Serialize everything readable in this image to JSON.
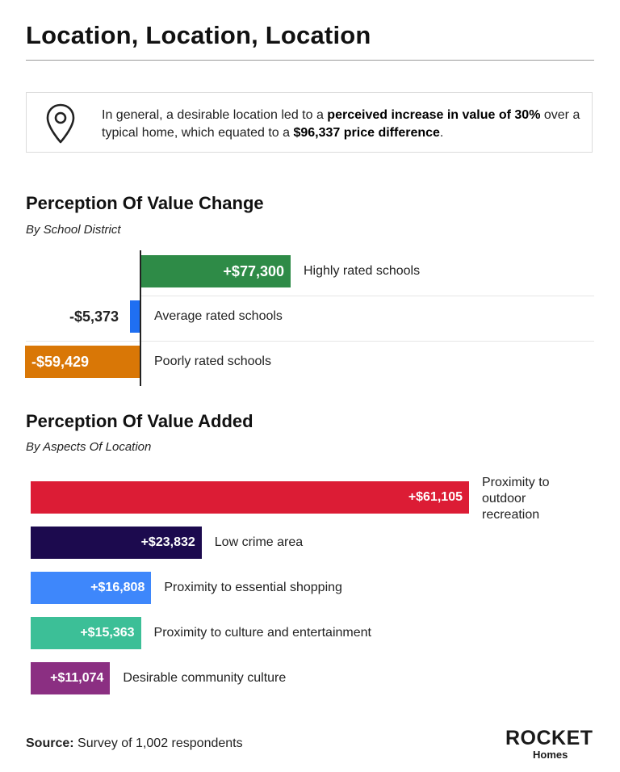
{
  "title": "Location, Location, Location",
  "callout": {
    "icon": "location-pin-icon",
    "text_prefix": "In general, a desirable location led to a ",
    "text_bold_1": "perceived increase in value of 30%",
    "text_mid": " over a typical home, which equated to a ",
    "text_bold_2": "$96,337 price difference",
    "text_suffix": "."
  },
  "section1": {
    "title": "Perception Of Value Change",
    "subtitle": "By School District"
  },
  "section2": {
    "title": "Perception Of Value Added",
    "subtitle": "By Aspects Of Location"
  },
  "source": {
    "label": "Source:",
    "text": " Survey of 1,002 respondents"
  },
  "logo": {
    "brand": "ROCKET",
    "sub": "Homes"
  },
  "colors": {
    "green": "#2e8b47",
    "blue": "#1f6ff2",
    "orange": "#d97706",
    "red": "#dc1c35",
    "navy": "#1c0a4e",
    "lightblue": "#3e87fb",
    "teal": "#3cbf97",
    "purple": "#8b2f82"
  },
  "chart_data": [
    {
      "type": "bar",
      "orientation": "horizontal",
      "title": "Perception Of Value Change",
      "subtitle": "By School District",
      "categories": [
        "Highly rated schools",
        "Average rated schools",
        "Poorly rated schools"
      ],
      "values": [
        77300,
        -5373,
        -59429
      ],
      "value_labels": [
        "+$77,300",
        "-$5,373",
        "-$59,429"
      ],
      "colors": [
        "#2e8b47",
        "#1f6ff2",
        "#d97706"
      ],
      "xlim": [
        -65000,
        85000
      ]
    },
    {
      "type": "bar",
      "orientation": "horizontal",
      "title": "Perception Of Value Added",
      "subtitle": "By Aspects Of Location",
      "categories": [
        "Proximity to outdoor recreation",
        "Low crime area",
        "Proximity to essential shopping",
        "Proximity to culture and entertainment",
        "Desirable community culture"
      ],
      "values": [
        61105,
        23832,
        16808,
        15363,
        11074
      ],
      "value_labels": [
        "+$61,105",
        "+$23,832",
        "+$16,808",
        "+$15,363",
        "+$11,074"
      ],
      "colors": [
        "#dc1c35",
        "#1c0a4e",
        "#3e87fb",
        "#3cbf97",
        "#8b2f82"
      ],
      "xlim": [
        0,
        61105
      ]
    }
  ]
}
